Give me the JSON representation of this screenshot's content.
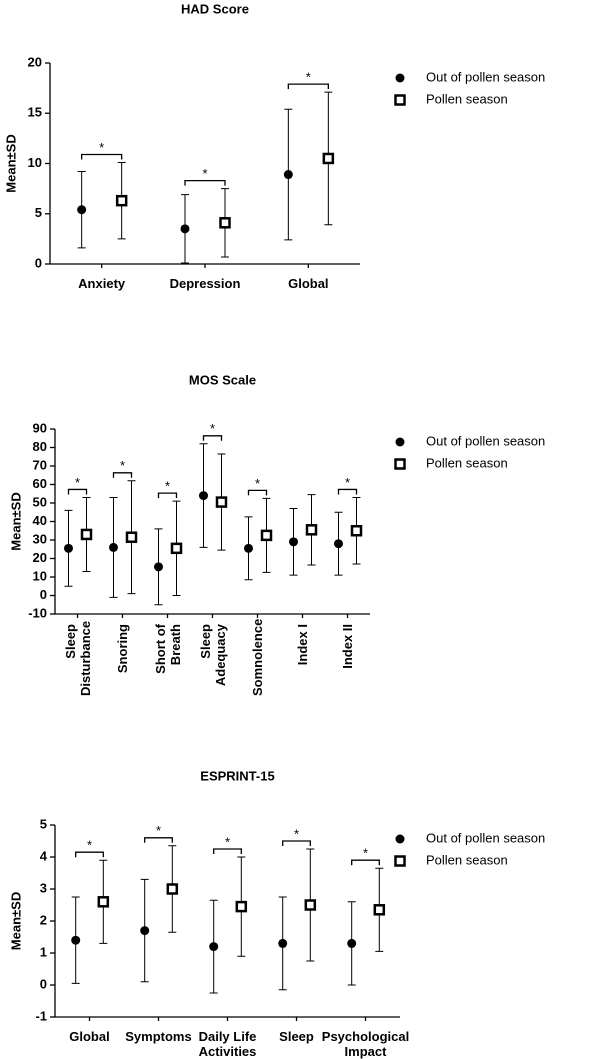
{
  "chart_data": [
    {
      "type": "dot",
      "title": "HAD Score",
      "ylabel": "Mean±SD",
      "categories": [
        "Anxiety",
        "Depression",
        "Global"
      ],
      "annotations": [
        "*",
        "*",
        "*"
      ],
      "series": [
        {
          "name": "Out of pollen season",
          "color": "#000000",
          "marker": "circle",
          "values": [
            5.4,
            3.5,
            8.9
          ],
          "errors": [
            3.8,
            3.4,
            6.5
          ]
        },
        {
          "name": "Pollen season",
          "color": "#000000",
          "marker": "square",
          "values": [
            6.3,
            4.1,
            10.5
          ],
          "errors": [
            3.8,
            3.4,
            6.6
          ]
        }
      ],
      "ylim": [
        0,
        20
      ],
      "yticks": [
        0,
        5,
        10,
        15,
        20
      ]
    },
    {
      "type": "dot",
      "title": "MOS Scale",
      "ylabel": "Mean±SD",
      "categories": [
        "Sleep Disturbance",
        "Snoring",
        "Short of Breath",
        "Sleep Adequacy",
        "Somnolence",
        "Index I",
        "Index II"
      ],
      "annotations": [
        "*",
        "*",
        "*",
        "*",
        "*",
        null,
        "*"
      ],
      "series": [
        {
          "name": "Out of pollen season",
          "color": "#000000",
          "marker": "circle",
          "values": [
            25.5,
            26,
            15.5,
            54,
            25.5,
            29,
            28
          ],
          "errors": [
            20.5,
            27,
            20.5,
            28,
            17,
            18,
            17
          ]
        },
        {
          "name": "Pollen season",
          "color": "#000000",
          "marker": "square",
          "values": [
            33,
            31.5,
            25.5,
            50.5,
            32.5,
            35.5,
            35
          ],
          "errors": [
            20,
            30.5,
            25.5,
            26,
            20,
            19,
            18
          ]
        }
      ],
      "ylim": [
        -10,
        90
      ],
      "yticks": [
        -10,
        0,
        10,
        20,
        30,
        40,
        50,
        60,
        70,
        80,
        90
      ]
    },
    {
      "type": "dot",
      "title": "ESPRINT-15",
      "ylabel": "Mean±SD",
      "categories": [
        "Global",
        "Symptoms",
        "Daily Life Activities",
        "Sleep",
        "Psychological Impact"
      ],
      "annotations": [
        "*",
        "*",
        "*",
        "*",
        "*"
      ],
      "series": [
        {
          "name": "Out of pollen season",
          "color": "#000000",
          "marker": "circle",
          "values": [
            1.4,
            1.7,
            1.2,
            1.3,
            1.3
          ],
          "errors": [
            1.35,
            1.6,
            1.45,
            1.45,
            1.3
          ]
        },
        {
          "name": "Pollen season",
          "color": "#000000",
          "marker": "square",
          "values": [
            2.6,
            3.0,
            2.45,
            2.5,
            2.35
          ],
          "errors": [
            1.3,
            1.35,
            1.55,
            1.75,
            1.3
          ]
        }
      ],
      "ylim": [
        -1,
        5
      ],
      "yticks": [
        -1,
        0,
        1,
        2,
        3,
        4,
        5
      ]
    }
  ]
}
